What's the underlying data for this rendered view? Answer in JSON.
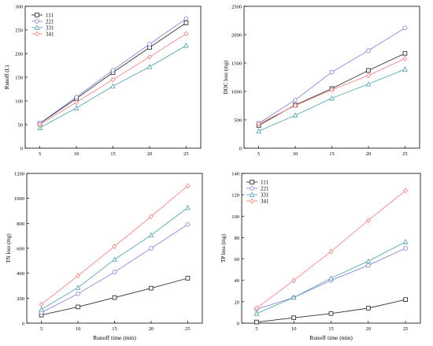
{
  "chart_data": [
    {
      "type": "line",
      "xlabel": "",
      "ylabel": "Runoff  (L)",
      "x": [
        5,
        10,
        15,
        20,
        25
      ],
      "xlim": [
        3,
        27
      ],
      "ylim": [
        0,
        300
      ],
      "xticks": [
        5,
        10,
        15,
        20,
        25
      ],
      "yticks": [
        0,
        50,
        100,
        150,
        200,
        250,
        300
      ],
      "legend": "top-left",
      "series": [
        {
          "name": "111",
          "values": [
            52,
            105,
            160,
            213,
            265
          ]
        },
        {
          "name": "221",
          "values": [
            53,
            108,
            165,
            220,
            274
          ]
        },
        {
          "name": "331",
          "values": [
            43,
            85,
            131,
            172,
            217
          ]
        },
        {
          "name": "341",
          "values": [
            50,
            97,
            145,
            193,
            242
          ]
        }
      ]
    },
    {
      "type": "line",
      "xlabel": "",
      "ylabel": "DOC loss (mg)",
      "x": [
        5,
        10,
        15,
        20,
        25
      ],
      "xlim": [
        3,
        27
      ],
      "ylim": [
        0,
        2500
      ],
      "xticks": [
        5,
        10,
        15,
        20,
        25
      ],
      "yticks": [
        0,
        500,
        1000,
        1500,
        2000,
        2500
      ],
      "legend": "none",
      "series": [
        {
          "name": "111",
          "values": [
            400,
            760,
            1050,
            1370,
            1670
          ]
        },
        {
          "name": "221",
          "values": [
            440,
            850,
            1340,
            1720,
            2120
          ]
        },
        {
          "name": "331",
          "values": [
            300,
            580,
            880,
            1130,
            1390
          ]
        },
        {
          "name": "341",
          "values": [
            430,
            750,
            1030,
            1280,
            1580
          ]
        }
      ]
    },
    {
      "type": "line",
      "xlabel": "Runoff time (min)",
      "ylabel": "TN loss (mg)",
      "x": [
        5,
        10,
        15,
        20,
        25
      ],
      "xlim": [
        3,
        27
      ],
      "ylim": [
        0,
        1200
      ],
      "xticks": [
        5,
        10,
        15,
        20,
        25
      ],
      "yticks": [
        0,
        200,
        400,
        600,
        800,
        1000,
        1200
      ],
      "legend": "none",
      "series": [
        {
          "name": "111",
          "values": [
            65,
            130,
            205,
            280,
            360
          ]
        },
        {
          "name": "221",
          "values": [
            85,
            235,
            410,
            600,
            790
          ]
        },
        {
          "name": "331",
          "values": [
            110,
            285,
            510,
            705,
            925
          ]
        },
        {
          "name": "341",
          "values": [
            150,
            380,
            615,
            855,
            1100
          ]
        }
      ]
    },
    {
      "type": "line",
      "xlabel": "Runoff time (min)",
      "ylabel": "TP loss (mg)",
      "x": [
        5,
        10,
        15,
        20,
        25
      ],
      "xlim": [
        3,
        27
      ],
      "ylim": [
        0,
        140
      ],
      "xticks": [
        5,
        10,
        15,
        20,
        25
      ],
      "yticks": [
        0,
        20,
        40,
        60,
        80,
        100,
        120,
        140
      ],
      "legend": "top-left",
      "series": [
        {
          "name": "111",
          "values": [
            1,
            5,
            9,
            14,
            22
          ]
        },
        {
          "name": "221",
          "values": [
            13,
            24,
            40,
            54,
            70
          ]
        },
        {
          "name": "331",
          "values": [
            9,
            24,
            42,
            58,
            76
          ]
        },
        {
          "name": "341",
          "values": [
            14,
            40,
            67,
            96,
            124
          ]
        }
      ]
    }
  ],
  "series_style": [
    {
      "color": "#333333",
      "marker": "square"
    },
    {
      "color": "#8a8ad8",
      "marker": "circle"
    },
    {
      "color": "#5fa8b0",
      "marker": "triangle"
    },
    {
      "color": "#f08a8a",
      "marker": "diamond"
    }
  ]
}
